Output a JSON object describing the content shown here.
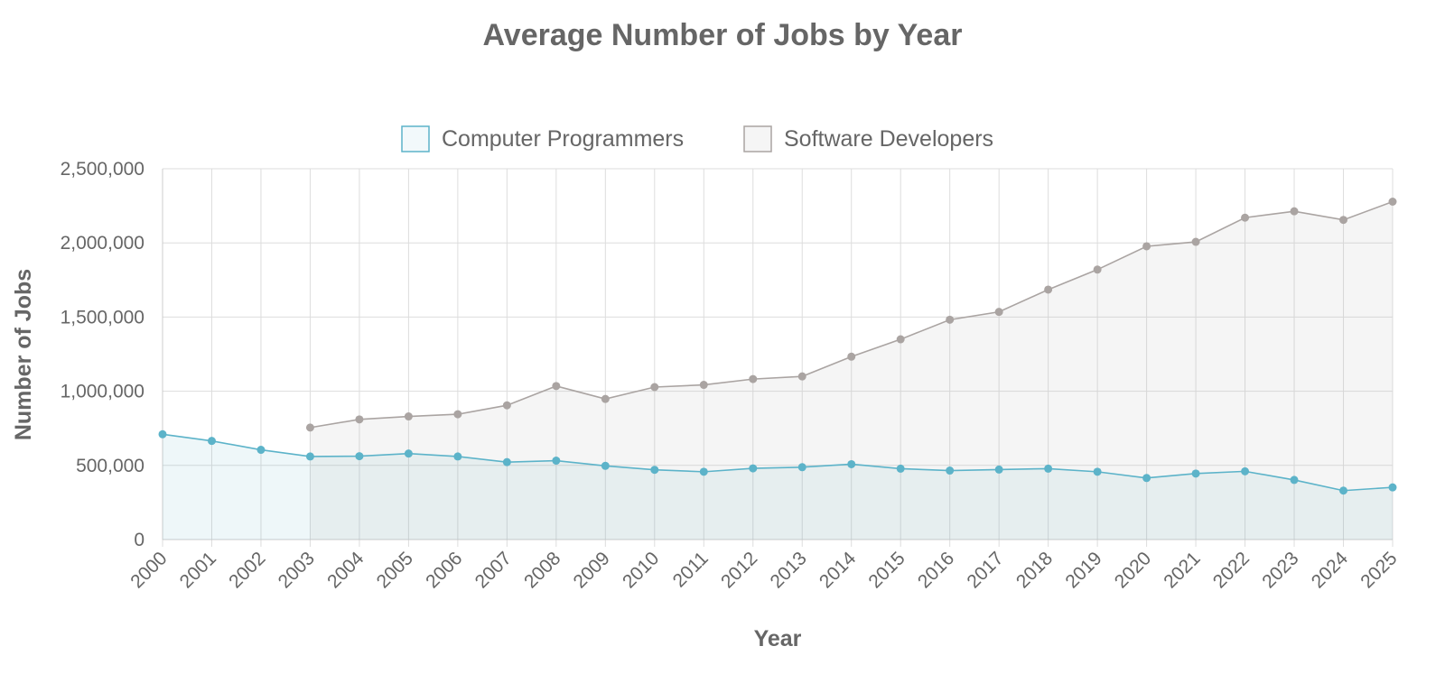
{
  "chart_data": {
    "type": "area",
    "title": "Average Number of Jobs by Year",
    "xlabel": "Year",
    "ylabel": "Number of Jobs",
    "ylim": [
      0,
      2500000
    ],
    "ytick_values": [
      0,
      500000,
      1000000,
      1500000,
      2000000,
      2500000
    ],
    "ytick_labels": [
      "0",
      "500,000",
      "1,000,000",
      "1,500,000",
      "2,000,000",
      "2,500,000"
    ],
    "categories": [
      "2000",
      "2001",
      "2002",
      "2003",
      "2004",
      "2005",
      "2006",
      "2007",
      "2008",
      "2009",
      "2010",
      "2011",
      "2012",
      "2013",
      "2014",
      "2015",
      "2016",
      "2017",
      "2018",
      "2019",
      "2020",
      "2021",
      "2022",
      "2023",
      "2024",
      "2025"
    ],
    "legend_position": "top-center",
    "grid": true,
    "series": [
      {
        "name": "Computer Programmers",
        "color": "#5cb3c9",
        "fill": "rgba(92,179,201,0.10)",
        "values": [
          710000,
          665000,
          605000,
          560000,
          562000,
          580000,
          560000,
          522000,
          532000,
          497000,
          470000,
          457000,
          480000,
          488000,
          508000,
          478000,
          465000,
          472000,
          478000,
          457000,
          415000,
          445000,
          460000,
          402000,
          330000,
          352000
        ]
      },
      {
        "name": "Software Developers",
        "color": "#aaa4a2",
        "fill": "rgba(170,170,170,0.12)",
        "values": [
          null,
          null,
          null,
          755000,
          810000,
          830000,
          845000,
          905000,
          1035000,
          948000,
          1028000,
          1043000,
          1082000,
          1100000,
          1233000,
          1350000,
          1482000,
          1535000,
          1685000,
          1820000,
          1977000,
          2007000,
          2170000,
          2213000,
          2155000,
          2278000
        ]
      }
    ]
  }
}
